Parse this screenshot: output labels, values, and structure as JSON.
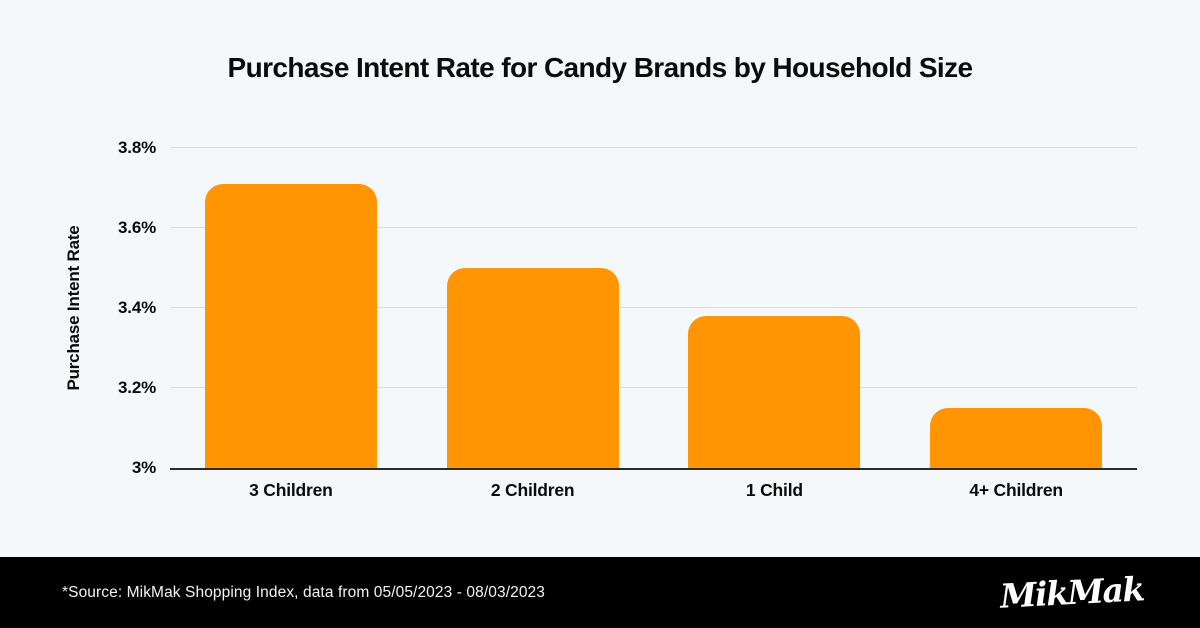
{
  "chart_data": {
    "type": "bar",
    "title": "Purchase Intent Rate for Candy Brands by Household Size",
    "ylabel": "Purchase Intent Rate",
    "xlabel": "",
    "categories": [
      "3 Children",
      "2 Children",
      "1 Child",
      "4+ Children"
    ],
    "values": [
      3.71,
      3.5,
      3.38,
      3.15
    ],
    "unit": "%",
    "ylim": [
      3.0,
      3.8
    ],
    "yticks": [
      {
        "value": 3.0,
        "label": "3%"
      },
      {
        "value": 3.2,
        "label": "3.2%"
      },
      {
        "value": 3.4,
        "label": "3.4%"
      },
      {
        "value": 3.6,
        "label": "3.6%"
      },
      {
        "value": 3.8,
        "label": "3.8%"
      }
    ],
    "bar_color": "#ff9502",
    "grid": true,
    "legend": "none"
  },
  "footer": {
    "source": "*Source: MikMak Shopping Index, data from 05/05/2023 - 08/03/2023",
    "logo_text": "MikMak"
  },
  "page": {
    "background_color": "#f5f8fb",
    "footer_background_color": "#000000"
  }
}
